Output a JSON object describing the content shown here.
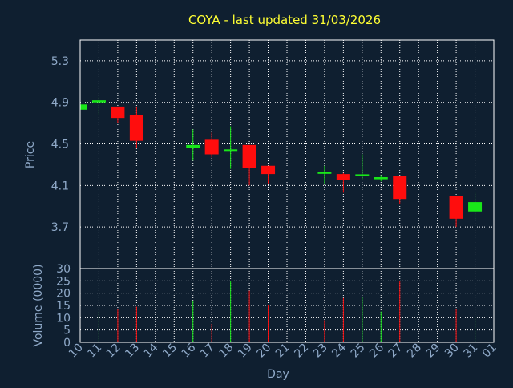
{
  "title": "COYA - last updated 31/03/2026",
  "colors": {
    "background": "#0f1f30",
    "title": "#ffff33",
    "axis_text": "#8fa9c8",
    "grid": "#ffffff",
    "up": "#19e619",
    "down": "#ff0d0d"
  },
  "chart_data": [
    {
      "type": "candlestick",
      "ylabel": "Price",
      "ylim": [
        3.3,
        5.5
      ],
      "yticks": [
        3.7,
        4.1,
        4.5,
        4.9,
        5.3
      ],
      "ytick_labels": [
        "3.7",
        "4.1",
        "4.5",
        "4.9",
        "5.3"
      ],
      "grid": true,
      "x": [
        "10",
        "11",
        "12",
        "13",
        "14",
        "15",
        "16",
        "17",
        "18",
        "19",
        "20",
        "21",
        "22",
        "23",
        "24",
        "25",
        "26",
        "27",
        "28",
        "29",
        "30",
        "31",
        "01"
      ],
      "candles": [
        {
          "day": "10",
          "open": 4.83,
          "close": 4.88,
          "high": 4.89,
          "low": 4.83
        },
        {
          "day": "11",
          "open": 4.9,
          "close": 4.92,
          "high": 4.95,
          "low": 4.78
        },
        {
          "day": "12",
          "open": 4.86,
          "close": 4.75,
          "high": 4.86,
          "low": 4.7
        },
        {
          "day": "13",
          "open": 4.78,
          "close": 4.53,
          "high": 4.86,
          "low": 4.46
        },
        {
          "day": "16",
          "open": 4.46,
          "close": 4.49,
          "high": 4.64,
          "low": 4.34
        },
        {
          "day": "17",
          "open": 4.54,
          "close": 4.4,
          "high": 4.61,
          "low": 4.37
        },
        {
          "day": "18",
          "open": 4.43,
          "close": 4.44,
          "high": 4.67,
          "low": 4.26
        },
        {
          "day": "19",
          "open": 4.49,
          "close": 4.27,
          "high": 4.49,
          "low": 4.1
        },
        {
          "day": "20",
          "open": 4.29,
          "close": 4.21,
          "high": 4.29,
          "low": 4.12
        },
        {
          "day": "23",
          "open": 4.22,
          "close": 4.22,
          "high": 4.29,
          "low": 4.12
        },
        {
          "day": "24",
          "open": 4.21,
          "close": 4.15,
          "high": 4.22,
          "low": 4.03
        },
        {
          "day": "25",
          "open": 4.19,
          "close": 4.2,
          "high": 4.4,
          "low": 4.16
        },
        {
          "day": "26",
          "open": 4.16,
          "close": 4.18,
          "high": 4.2,
          "low": 4.14
        },
        {
          "day": "27",
          "open": 4.19,
          "close": 3.97,
          "high": 4.19,
          "low": 3.92
        },
        {
          "day": "30",
          "open": 4.0,
          "close": 3.78,
          "high": 4.0,
          "low": 3.7
        },
        {
          "day": "31",
          "open": 3.85,
          "close": 3.94,
          "high": 4.03,
          "low": 3.77
        }
      ]
    },
    {
      "type": "bar",
      "ylabel": "Volume (0000)",
      "xlabel": "Day",
      "ylim": [
        0,
        30
      ],
      "yticks": [
        0,
        5,
        10,
        15,
        20,
        25,
        30
      ],
      "ytick_labels": [
        "0",
        "5",
        "10",
        "15",
        "20",
        "25",
        "30"
      ],
      "grid": true,
      "x": [
        "10",
        "11",
        "12",
        "13",
        "14",
        "15",
        "16",
        "17",
        "18",
        "19",
        "20",
        "21",
        "22",
        "23",
        "24",
        "25",
        "26",
        "27",
        "28",
        "29",
        "30",
        "31",
        "01"
      ],
      "bars": [
        {
          "day": "10",
          "value": 0,
          "dir": "up"
        },
        {
          "day": "11",
          "value": 12.5,
          "dir": "up"
        },
        {
          "day": "12",
          "value": 13.5,
          "dir": "down"
        },
        {
          "day": "13",
          "value": 14.5,
          "dir": "down"
        },
        {
          "day": "16",
          "value": 17,
          "dir": "up"
        },
        {
          "day": "17",
          "value": 7.5,
          "dir": "down"
        },
        {
          "day": "18",
          "value": 25,
          "dir": "up"
        },
        {
          "day": "19",
          "value": 21,
          "dir": "down"
        },
        {
          "day": "20",
          "value": 15,
          "dir": "down"
        },
        {
          "day": "23",
          "value": 9,
          "dir": "down"
        },
        {
          "day": "24",
          "value": 18,
          "dir": "down"
        },
        {
          "day": "25",
          "value": 18.5,
          "dir": "up"
        },
        {
          "day": "26",
          "value": 12.5,
          "dir": "up"
        },
        {
          "day": "27",
          "value": 25,
          "dir": "down"
        },
        {
          "day": "30",
          "value": 13.5,
          "dir": "down"
        },
        {
          "day": "31",
          "value": 10.5,
          "dir": "up"
        }
      ]
    }
  ]
}
